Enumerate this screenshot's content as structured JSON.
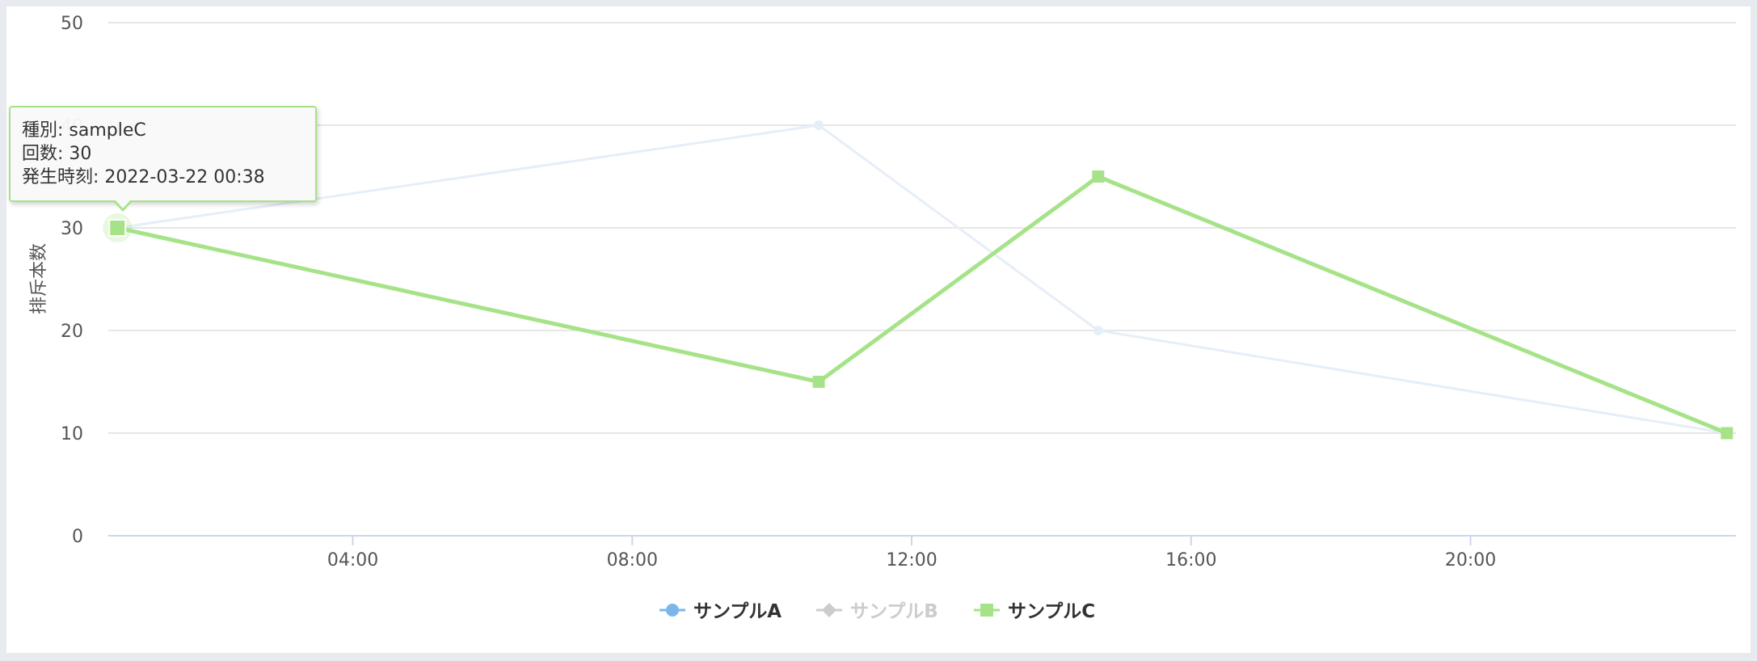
{
  "chart_data": {
    "type": "line",
    "title": "",
    "xlabel": "",
    "ylabel": "排斥本数",
    "ylim": [
      0,
      50
    ],
    "y_ticks": [
      0,
      10,
      20,
      30,
      40,
      50
    ],
    "xlim_hours": [
      0.5,
      23.8
    ],
    "x_ticks": [
      {
        "hour": 4,
        "label": "04:00"
      },
      {
        "hour": 8,
        "label": "08:00"
      },
      {
        "hour": 12,
        "label": "12:00"
      },
      {
        "hour": 16,
        "label": "16:00"
      },
      {
        "hour": 20,
        "label": "20:00"
      }
    ],
    "grid": true,
    "legend_position": "bottom-center",
    "series": [
      {
        "name": "サンプルA",
        "marker": "circle",
        "color": "#7cb5ec",
        "visible": true,
        "emphasized": false,
        "points": []
      },
      {
        "name": "サンプルB",
        "marker": "diamond",
        "color": "#cccccc",
        "visible": false,
        "emphasized": false,
        "points": []
      },
      {
        "name": "サンプルC",
        "marker": "square",
        "color": "#a6e388",
        "visible": true,
        "emphasized": true,
        "points": [
          {
            "hour": 0.63,
            "y": 30
          },
          {
            "hour": 10.67,
            "y": 15
          },
          {
            "hour": 14.67,
            "y": 35
          },
          {
            "hour": 23.67,
            "y": 10
          }
        ]
      },
      {
        "name": "",
        "marker": "circle",
        "color": "#e6eef8",
        "visible": true,
        "emphasized": false,
        "points": [
          {
            "hour": 0.63,
            "y": 30
          },
          {
            "hour": 10.67,
            "y": 40
          },
          {
            "hour": 14.67,
            "y": 20
          },
          {
            "hour": 23.67,
            "y": 10
          }
        ]
      }
    ]
  },
  "tooltip": {
    "line1": "種別: sampleC",
    "line2": "回数: 30",
    "line3": "発生時刻: 2022-03-22 00:38"
  }
}
